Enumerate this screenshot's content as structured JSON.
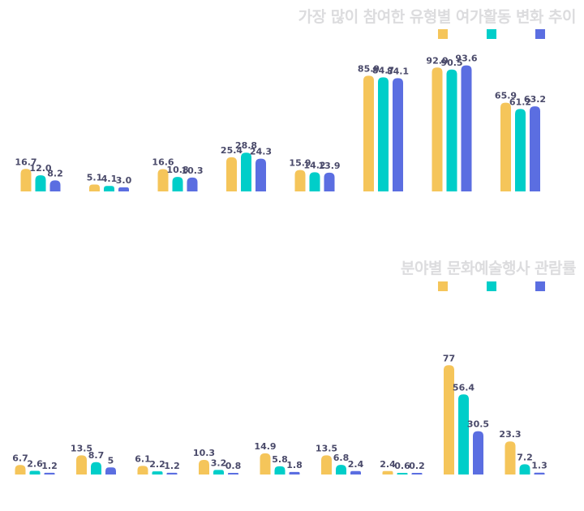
{
  "colors": [
    "#f5c55a",
    "#00cec9",
    "#5b6ee1"
  ],
  "chart_data": [
    {
      "type": "bar",
      "title": "가장 많이 참여한 유형별 여가활동 변화 추이",
      "categories": [
        "",
        "",
        "",
        "",
        "",
        "",
        "",
        ""
      ],
      "ylim": [
        0,
        100
      ],
      "grid": false,
      "legend": "top-right",
      "series": [
        {
          "values": [
            16.7,
            5.1,
            16.6,
            25.4,
            15.9,
            85.9,
            92.0,
            65.9
          ],
          "labels": [
            "16.7",
            "5.1",
            "16.6",
            "25.4",
            "15.9",
            "85.9",
            "92.0",
            "65.9"
          ]
        },
        {
          "values": [
            12.0,
            4.1,
            10.8,
            28.8,
            14.2,
            84.7,
            90.5,
            61.2
          ],
          "labels": [
            "12.0",
            "4.1",
            "10.8",
            "28.8",
            "14.2",
            "84.7",
            "90.5",
            "61.2"
          ]
        },
        {
          "values": [
            8.2,
            3.0,
            10.3,
            24.3,
            13.9,
            84.1,
            93.6,
            63.2
          ],
          "labels": [
            "8.2",
            "3.0",
            "10.3",
            "24.3",
            "13.9",
            "84.1",
            "93.6",
            "63.2"
          ]
        }
      ]
    },
    {
      "type": "bar",
      "title": "분야별 문화예술행사 관람률",
      "categories": [
        "",
        "",
        "",
        "",
        "",
        "",
        "",
        "",
        ""
      ],
      "ylim": [
        0,
        100
      ],
      "grid": false,
      "legend": "top-right",
      "series": [
        {
          "values": [
            6.7,
            13.5,
            6.1,
            10.3,
            14.9,
            13.5,
            2.4,
            77,
            23.3
          ],
          "labels": [
            "6.7",
            "13.5",
            "6.1",
            "10.3",
            "14.9",
            "13.5",
            "2.4",
            "77",
            "23.3"
          ]
        },
        {
          "values": [
            2.6,
            8.7,
            2.2,
            3.2,
            5.8,
            6.8,
            0.6,
            56.4,
            7.2
          ],
          "labels": [
            "2.6",
            "8.7",
            "2.2",
            "3.2",
            "5.8",
            "6.8",
            "0.6",
            "56.4",
            "7.2"
          ]
        },
        {
          "values": [
            1.2,
            5,
            1.2,
            0.8,
            1.8,
            2.4,
            0.2,
            30.5,
            1.3
          ],
          "labels": [
            "1.2",
            "5",
            "1.2",
            "0.8",
            "1.8",
            "2.4",
            "0.2",
            "30.5",
            "1.3"
          ]
        }
      ]
    }
  ]
}
